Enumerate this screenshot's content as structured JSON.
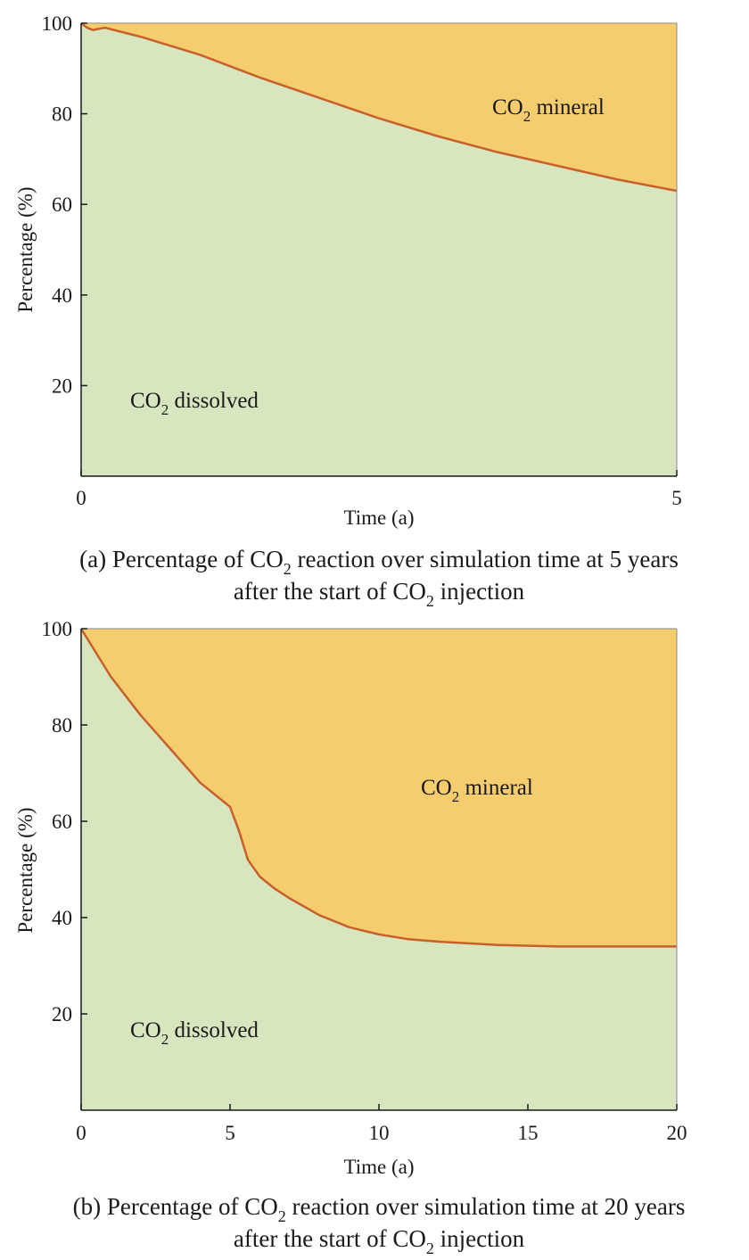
{
  "colors": {
    "mineral": "#f5cd6e",
    "dissolved": "#d8e6bf",
    "boundary": "#c8602a",
    "axis": "#1a1a1a"
  },
  "chart_data": [
    {
      "type": "area",
      "id": "a",
      "xlabel": "Time (a)",
      "ylabel": "Percentage (%)",
      "xlim": [
        0,
        5
      ],
      "ylim": [
        0,
        100
      ],
      "xticks": [
        0,
        5
      ],
      "yticks": [
        20,
        40,
        60,
        80,
        100
      ],
      "x": [
        0,
        0.05,
        0.1,
        0.2,
        0.5,
        1.0,
        1.5,
        2.0,
        2.5,
        3.0,
        3.5,
        4.0,
        4.5,
        5.0
      ],
      "series": [
        {
          "name": "CO2 dissolved",
          "values": [
            100,
            99,
            98.5,
            99,
            97,
            93,
            88,
            83.5,
            79,
            75,
            71.5,
            68.5,
            65.5,
            63
          ]
        },
        {
          "name": "CO2 mineral",
          "values": [
            0,
            1,
            1.5,
            1,
            3,
            7,
            12,
            16.5,
            21,
            25,
            28.5,
            31.5,
            34.5,
            37
          ]
        }
      ],
      "labels": {
        "mineral": {
          "main": "CO",
          "sub": "2",
          "rest": " mineral"
        },
        "dissolved": {
          "main": "CO",
          "sub": "2",
          "rest": " dissolved"
        }
      },
      "caption": {
        "line1_pre": "(a) Percentage of CO",
        "line1_sub": "2",
        "line1_post": " reaction over simulation time at 5 years",
        "line2_pre": "after the start of CO",
        "line2_sub": "2",
        "line2_post": " injection"
      }
    },
    {
      "type": "area",
      "id": "b",
      "xlabel": "Time (a)",
      "ylabel": "Percentage (%)",
      "xlim": [
        0,
        20
      ],
      "ylim": [
        0,
        100
      ],
      "xticks": [
        0,
        5,
        10,
        15,
        20
      ],
      "yticks": [
        20,
        40,
        60,
        80,
        100
      ],
      "x": [
        0,
        0.2,
        0.5,
        1,
        2,
        3,
        4,
        5,
        5.3,
        5.6,
        6,
        6.5,
        7,
        8,
        9,
        10,
        11,
        12,
        14,
        16,
        18,
        20
      ],
      "series": [
        {
          "name": "CO2 dissolved",
          "values": [
            100,
            98,
            95,
            90,
            82,
            75,
            68,
            63,
            58,
            52,
            48.5,
            46,
            44,
            40.5,
            38,
            36.5,
            35.5,
            35,
            34.3,
            34,
            34,
            34
          ]
        },
        {
          "name": "CO2 mineral",
          "values": [
            0,
            2,
            5,
            10,
            18,
            25,
            32,
            37,
            42,
            48,
            51.5,
            54,
            56,
            59.5,
            62,
            63.5,
            64.5,
            65,
            65.7,
            66,
            66,
            66
          ]
        }
      ],
      "labels": {
        "mineral": {
          "main": "CO",
          "sub": "2",
          "rest": " mineral"
        },
        "dissolved": {
          "main": "CO",
          "sub": "2",
          "rest": " dissolved"
        }
      },
      "caption": {
        "line1_pre": "(b) Percentage of CO",
        "line1_sub": "2",
        "line1_post": " reaction over simulation time at 20 years",
        "line2_pre": "after the start of CO",
        "line2_sub": "2",
        "line2_post": " injection"
      }
    }
  ]
}
